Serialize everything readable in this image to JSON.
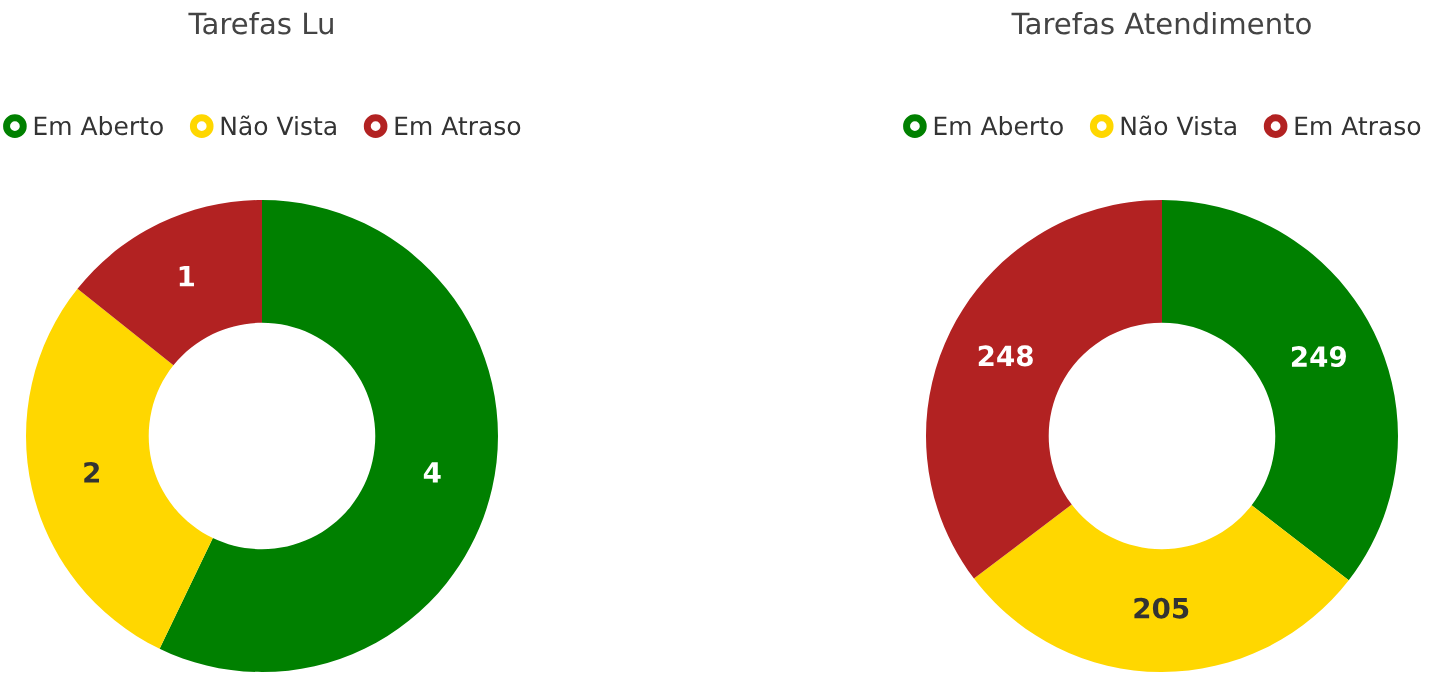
{
  "chart_data": [
    {
      "type": "donut",
      "title": "Tarefas Lu",
      "categories": [
        "Em Aberto",
        "Não Vista",
        "Em Atraso"
      ],
      "values": [
        4,
        2,
        1
      ],
      "colors": [
        "#008000",
        "#ffd700",
        "#b22222"
      ],
      "data_labels": true,
      "legend": "top"
    },
    {
      "type": "donut",
      "title": "Tarefas Atendimento",
      "categories": [
        "Em Aberto",
        "Não Vista",
        "Em Atraso"
      ],
      "values": [
        249,
        205,
        248
      ],
      "colors": [
        "#008000",
        "#ffd700",
        "#b22222"
      ],
      "data_labels": true,
      "legend": "top"
    }
  ]
}
